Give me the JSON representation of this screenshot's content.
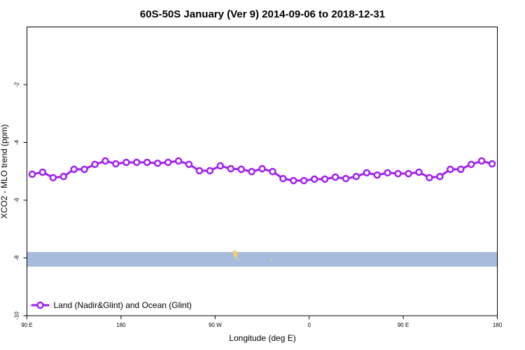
{
  "chart_data": {
    "type": "line",
    "title": "60S-50S January (Ver 9)   2014-09-06 to 2018-12-31",
    "x_label": "Longitude (deg E)",
    "y_label": "XCO2 - MLO trend (ppm)",
    "xlim": [
      90,
      540
    ],
    "ylim": [
      -10,
      0
    ],
    "xticks": [
      {
        "value": 90,
        "label": "90 E"
      },
      180,
      {
        "value": 270,
        "label": "90 W"
      },
      {
        "value": 360,
        "label": "0"
      },
      {
        "value": 450,
        "label": "90 E"
      },
      {
        "value": 540,
        "label": "180"
      }
    ],
    "yticks": [
      -10,
      -8,
      -6,
      -4,
      -2
    ],
    "legend": "lower left",
    "x": [
      95,
      105,
      115,
      125,
      135,
      145,
      155,
      165,
      175,
      185,
      195,
      205,
      215,
      225,
      235,
      245,
      255,
      265,
      275,
      285,
      295,
      305,
      315,
      325,
      335,
      345,
      355,
      365,
      375,
      385,
      395,
      405,
      415,
      425,
      435,
      445,
      455,
      465,
      475,
      485,
      495,
      505,
      515,
      525,
      535
    ],
    "series": [
      {
        "name": "Land (Nadir&Glint) and Ocean (Glint)",
        "color": "#a020f0",
        "values": [
          -5.1,
          -5.03,
          -5.22,
          -5.18,
          -4.93,
          -4.93,
          -4.76,
          -4.64,
          -4.74,
          -4.69,
          -4.69,
          -4.69,
          -4.72,
          -4.69,
          -4.64,
          -4.76,
          -4.98,
          -4.98,
          -4.81,
          -4.91,
          -4.93,
          -5.01,
          -4.91,
          -5.01,
          -5.25,
          -5.32,
          -5.32,
          -5.27,
          -5.27,
          -5.2,
          -5.25,
          -5.18,
          -5.05,
          -5.13,
          -5.05,
          -5.08,
          -5.08,
          -5.03,
          -5.22,
          -5.18,
          -4.93,
          -4.93,
          -4.76,
          -4.64,
          -4.74
        ]
      }
    ]
  }
}
